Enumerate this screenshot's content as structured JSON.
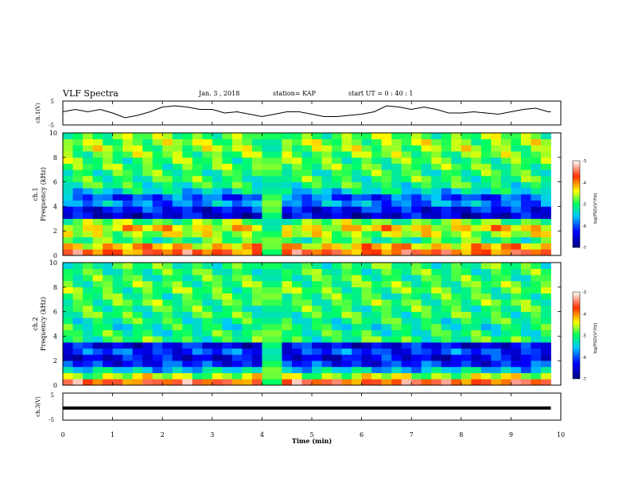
{
  "header": {
    "title": "VLF Spectra",
    "date": "Jan. 3 , 2018",
    "station": "station= KAP",
    "start": "start UT = 0 : 40 : 1"
  },
  "panels": {
    "ch1v": {
      "ylabel": "ch.1(V)",
      "yticks": [
        "5",
        "-5"
      ]
    },
    "ch1": {
      "ylabel_line1": "ch.1",
      "ylabel_line2": "Frequency (kHz)",
      "yticks": [
        "0",
        "2",
        "4",
        "6",
        "8",
        "10"
      ]
    },
    "ch2": {
      "ylabel_line1": "ch.2",
      "ylabel_line2": "Frequency (kHz)",
      "yticks": [
        "0",
        "2",
        "4",
        "6",
        "8",
        "10"
      ]
    },
    "ch3v": {
      "ylabel": "ch.3(V)",
      "yticks": [
        "5",
        "-5"
      ]
    }
  },
  "xaxis": {
    "label": "Time (min)",
    "ticks": [
      "0",
      "1",
      "2",
      "3",
      "4",
      "5",
      "6",
      "7",
      "8",
      "9",
      "10"
    ]
  },
  "colorbar": {
    "label": "log(PSD)(V²/Hz)",
    "ticks": [
      "-3",
      "-4",
      "-5",
      "-6",
      "-7"
    ]
  },
  "colors": {
    "line": "#000000",
    "background": "#ffffff"
  },
  "chart_data": [
    {
      "type": "line",
      "name": "ch1-voltage",
      "xlabel": "Time (min)",
      "ylabel": "ch.1(V)",
      "xlim": [
        0,
        10
      ],
      "ylim": [
        -5,
        5
      ],
      "x": [
        0,
        0.25,
        0.5,
        0.75,
        1,
        1.25,
        1.5,
        1.75,
        2,
        2.25,
        2.5,
        2.75,
        3,
        3.25,
        3.5,
        3.75,
        4,
        4.25,
        4.5,
        4.75,
        5,
        5.25,
        5.5,
        5.75,
        6,
        6.25,
        6.5,
        6.75,
        7,
        7.25,
        7.5,
        7.75,
        8,
        8.25,
        8.5,
        8.75,
        9,
        9.25,
        9.5,
        9.75,
        9.8
      ],
      "y": [
        0.5,
        1.5,
        0.5,
        1.5,
        0,
        -2,
        -1,
        0.5,
        2.5,
        3,
        2.5,
        1.5,
        1.5,
        0,
        0.5,
        -0.5,
        -1.5,
        -0.5,
        0.5,
        0.5,
        -0.5,
        -1.5,
        -1.5,
        -1,
        -0.5,
        0.5,
        3.0,
        2.5,
        1.5,
        2.5,
        1.5,
        0,
        0,
        0.5,
        0,
        -0.5,
        0.5,
        1.5,
        2,
        0.5,
        0.5
      ]
    },
    {
      "type": "heatmap",
      "name": "ch1-spectrogram",
      "xlabel": "Time (min)",
      "ylabel": "Frequency (kHz)",
      "xlim": [
        0,
        10
      ],
      "ylim": [
        0,
        10
      ],
      "data_extent_min": 9.8,
      "zlim": [
        -7,
        -3
      ],
      "zlabel": "log(PSD)(V²/Hz)",
      "quiet_interval_min": [
        3.85,
        4.3
      ],
      "frequency_bands_khz": [
        0,
        0.5,
        1,
        1.5,
        2,
        2.5,
        3,
        3.5,
        4,
        4.5,
        5,
        5.5,
        6,
        6.5,
        7,
        7.5,
        8,
        8.5,
        9,
        9.5,
        10
      ],
      "band_log_psd": [
        -3.8,
        -4.2,
        -5.0,
        -4.6,
        -4.3,
        -4.8,
        -6.5,
        -6.3,
        -5.8,
        -6.0,
        -5.4,
        -5.1,
        -5.0,
        -5.0,
        -4.9,
        -4.9,
        -4.8,
        -4.7,
        -4.7,
        -4.8
      ]
    },
    {
      "type": "heatmap",
      "name": "ch2-spectrogram",
      "xlabel": "Time (min)",
      "ylabel": "Frequency (kHz)",
      "xlim": [
        0,
        10
      ],
      "ylim": [
        0,
        10
      ],
      "data_extent_min": 9.8,
      "zlim": [
        -7,
        -3
      ],
      "zlabel": "log(PSD)(V²/Hz)",
      "quiet_interval_min": [
        3.85,
        4.3
      ],
      "frequency_bands_khz": [
        0,
        0.5,
        1,
        1.5,
        2,
        2.5,
        3,
        3.5,
        4,
        4.5,
        5,
        5.5,
        6,
        6.5,
        7,
        7.5,
        8,
        8.5,
        9,
        9.5,
        10
      ],
      "band_log_psd": [
        -3.7,
        -4.6,
        -5.5,
        -6.2,
        -6.4,
        -6.1,
        -6.4,
        -5.0,
        -5.1,
        -5.2,
        -5.1,
        -5.0,
        -5.0,
        -4.9,
        -5.0,
        -4.9,
        -4.9,
        -5.0,
        -5.0,
        -5.0
      ]
    },
    {
      "type": "line",
      "name": "ch3-voltage",
      "xlabel": "Time (min)",
      "ylabel": "ch.3(V)",
      "xlim": [
        0,
        10
      ],
      "ylim": [
        -5,
        5
      ],
      "x": [
        0,
        9.8
      ],
      "y": [
        -0.5,
        -0.5
      ]
    }
  ]
}
